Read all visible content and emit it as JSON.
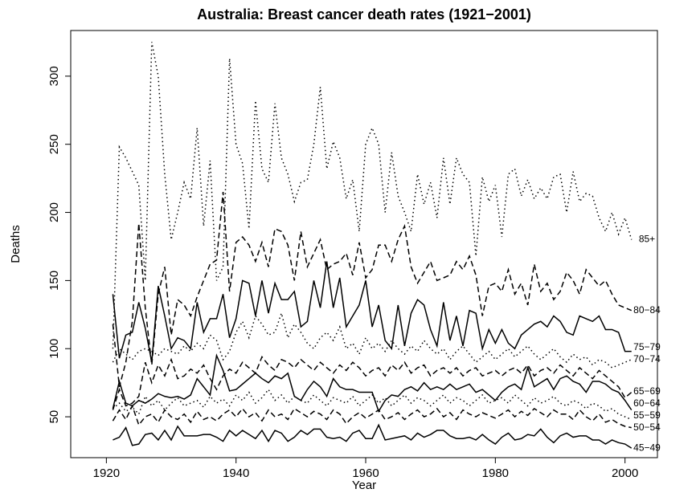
{
  "chart_data": {
    "type": "line",
    "title": "Australia: Breast cancer death rates (1921−2001)",
    "x_label": "Year",
    "y_label": "Deaths",
    "x": [
      1921,
      1922,
      1923,
      1924,
      1925,
      1926,
      1927,
      1928,
      1929,
      1930,
      1931,
      1932,
      1933,
      1934,
      1935,
      1936,
      1937,
      1938,
      1939,
      1940,
      1941,
      1942,
      1943,
      1944,
      1945,
      1946,
      1947,
      1948,
      1949,
      1950,
      1951,
      1952,
      1953,
      1954,
      1955,
      1956,
      1957,
      1958,
      1959,
      1960,
      1961,
      1962,
      1963,
      1964,
      1965,
      1966,
      1967,
      1968,
      1969,
      1970,
      1971,
      1972,
      1973,
      1974,
      1975,
      1976,
      1977,
      1978,
      1979,
      1980,
      1981,
      1982,
      1983,
      1984,
      1985,
      1986,
      1987,
      1988,
      1989,
      1990,
      1991,
      1992,
      1993,
      1994,
      1995,
      1996,
      1997,
      1998,
      1999,
      2000,
      2001
    ],
    "xlim": [
      1914.5,
      2005
    ],
    "xticks": [
      1920,
      1940,
      1960,
      1980,
      2000
    ],
    "ylim": [
      20,
      333.5
    ],
    "yticks": [
      50,
      100,
      150,
      200,
      250,
      300
    ],
    "series": [
      {
        "name": "45−49",
        "color": "#000000",
        "dash": "solid",
        "values": [
          33,
          35,
          42,
          29,
          30,
          37,
          38,
          33,
          40,
          33,
          43,
          36,
          36,
          36,
          37,
          37,
          35,
          32,
          40,
          36,
          40,
          37,
          34,
          40,
          32,
          40,
          38,
          32,
          35,
          40,
          37,
          41,
          41,
          35,
          34,
          35,
          32,
          38,
          40,
          34,
          34,
          44,
          33,
          34,
          35,
          36,
          33,
          38,
          35,
          37,
          40,
          40,
          36,
          34,
          34,
          35,
          33,
          37,
          33,
          30,
          35,
          38,
          33,
          34,
          37,
          36,
          41,
          35,
          31,
          36,
          38,
          35,
          36,
          36,
          33,
          33,
          30,
          33,
          31,
          30,
          27
        ]
      },
      {
        "name": "50−54",
        "color": "#000000",
        "dash": "dashed",
        "values": [
          47,
          55,
          48,
          58,
          44,
          50,
          52,
          46,
          55,
          50,
          48,
          52,
          46,
          54,
          48,
          50,
          47,
          52,
          55,
          50,
          56,
          50,
          53,
          47,
          55,
          50,
          52,
          48,
          56,
          53,
          50,
          54,
          52,
          48,
          55,
          52,
          45,
          50,
          53,
          49,
          52,
          55,
          48,
          50,
          53,
          48,
          52,
          55,
          50,
          52,
          56,
          50,
          53,
          48,
          55,
          52,
          50,
          53,
          51,
          49,
          52,
          55,
          50,
          54,
          51,
          56,
          53,
          50,
          55,
          52,
          52,
          48,
          55,
          50,
          47,
          52,
          46,
          48,
          45,
          43,
          42
        ]
      },
      {
        "name": "55−59",
        "color": "#000000",
        "dash": "dotted",
        "values": [
          56,
          60,
          54,
          57,
          52,
          65,
          58,
          62,
          55,
          60,
          64,
          58,
          60,
          62,
          57,
          65,
          60,
          63,
          58,
          66,
          62,
          68,
          60,
          64,
          70,
          62,
          66,
          60,
          65,
          62,
          60,
          66,
          62,
          58,
          64,
          62,
          60,
          65,
          58,
          62,
          66,
          60,
          64,
          58,
          62,
          66,
          60,
          64,
          62,
          58,
          62,
          66,
          60,
          64,
          62,
          58,
          62,
          66,
          60,
          62,
          64,
          60,
          66,
          62,
          58,
          64,
          60,
          62,
          65,
          60,
          58,
          62,
          60,
          56,
          60,
          58,
          54,
          56,
          52,
          50,
          48
        ]
      },
      {
        "name": "60−64",
        "color": "#000000",
        "dash": "solid",
        "values": [
          56,
          76,
          60,
          58,
          62,
          60,
          63,
          67,
          65,
          64,
          65,
          63,
          66,
          78,
          72,
          66,
          95,
          84,
          69,
          70,
          74,
          78,
          82,
          78,
          75,
          80,
          78,
          82,
          65,
          62,
          70,
          76,
          72,
          65,
          78,
          72,
          70,
          70,
          68,
          68,
          68,
          54,
          62,
          66,
          65,
          70,
          72,
          69,
          75,
          70,
          72,
          70,
          74,
          70,
          72,
          74,
          68,
          70,
          66,
          62,
          68,
          72,
          74,
          70,
          86,
          72,
          75,
          78,
          70,
          78,
          80,
          76,
          74,
          68,
          76,
          76,
          74,
          70,
          68,
          62,
          55
        ]
      },
      {
        "name": "65−69",
        "color": "#000000",
        "dash": "dashed",
        "values": [
          55,
          70,
          58,
          60,
          65,
          90,
          75,
          88,
          80,
          92,
          78,
          80,
          85,
          82,
          88,
          78,
          70,
          80,
          85,
          82,
          90,
          86,
          82,
          94,
          88,
          84,
          92,
          90,
          86,
          92,
          88,
          84,
          90,
          86,
          82,
          88,
          84,
          90,
          86,
          80,
          84,
          86,
          80,
          88,
          84,
          90,
          82,
          86,
          88,
          80,
          84,
          86,
          82,
          86,
          80,
          84,
          86,
          80,
          82,
          84,
          80,
          84,
          86,
          82,
          88,
          80,
          84,
          86,
          82,
          88,
          84,
          80,
          86,
          82,
          78,
          84,
          80,
          76,
          72,
          64,
          68
        ]
      },
      {
        "name": "70−74",
        "color": "#000000",
        "dash": "dotted",
        "values": [
          90,
          100,
          96,
          92,
          98,
          100,
          98,
          95,
          100,
          98,
          96,
          102,
          98,
          104,
          100,
          110,
          106,
          92,
          98,
          112,
          120,
          108,
          124,
          118,
          110,
          112,
          126,
          108,
          118,
          112,
          104,
          100,
          108,
          112,
          106,
          116,
          100,
          104,
          96,
          108,
          100,
          104,
          98,
          106,
          100,
          96,
          102,
          98,
          106,
          100,
          96,
          100,
          92,
          98,
          102,
          96,
          90,
          94,
          98,
          92,
          96,
          100,
          94,
          98,
          102,
          96,
          92,
          96,
          100,
          94,
          90,
          96,
          92,
          94,
          88,
          92,
          90,
          86,
          88,
          90,
          92
        ]
      },
      {
        "name": "75−79",
        "color": "#000000",
        "dash": "solid",
        "values": [
          140,
          93,
          110,
          112,
          134,
          115,
          90,
          146,
          124,
          100,
          108,
          106,
          100,
          134,
          112,
          122,
          122,
          140,
          108,
          122,
          150,
          148,
          124,
          150,
          126,
          148,
          136,
          136,
          142,
          116,
          120,
          150,
          130,
          164,
          130,
          152,
          116,
          124,
          132,
          150,
          116,
          132,
          106,
          100,
          132,
          102,
          126,
          136,
          132,
          114,
          102,
          134,
          106,
          124,
          102,
          128,
          126,
          100,
          114,
          104,
          114,
          104,
          100,
          110,
          114,
          118,
          120,
          116,
          124,
          120,
          112,
          110,
          124,
          122,
          120,
          124,
          114,
          114,
          112,
          98,
          98
        ]
      },
      {
        "name": "80−84",
        "color": "#000000",
        "dash": "dashed",
        "values": [
          118,
          72,
          90,
          120,
          192,
          130,
          88,
          140,
          160,
          110,
          136,
          132,
          124,
          138,
          150,
          162,
          165,
          215,
          142,
          178,
          182,
          176,
          164,
          178,
          160,
          188,
          186,
          176,
          150,
          186,
          160,
          170,
          180,
          158,
          162,
          164,
          170,
          154,
          178,
          152,
          158,
          176,
          176,
          164,
          180,
          190,
          160,
          148,
          156,
          164,
          150,
          152,
          154,
          164,
          158,
          168,
          154,
          124,
          146,
          148,
          142,
          158,
          140,
          148,
          132,
          162,
          142,
          148,
          136,
          142,
          156,
          150,
          140,
          158,
          152,
          146,
          150,
          140,
          132,
          130,
          128
        ]
      },
      {
        "name": "85+",
        "color": "#000000",
        "dash": "dotted",
        "values": [
          100,
          248,
          240,
          230,
          220,
          150,
          325,
          300,
          228,
          180,
          200,
          222,
          210,
          262,
          190,
          238,
          150,
          160,
          313,
          250,
          236,
          188,
          282,
          232,
          222,
          280,
          240,
          228,
          208,
          222,
          224,
          250,
          292,
          232,
          252,
          240,
          210,
          224,
          186,
          250,
          262,
          250,
          200,
          244,
          212,
          200,
          186,
          228,
          206,
          222,
          196,
          240,
          206,
          240,
          228,
          222,
          168,
          226,
          208,
          220,
          182,
          228,
          232,
          212,
          224,
          210,
          218,
          210,
          226,
          228,
          200,
          230,
          208,
          214,
          212,
          196,
          186,
          200,
          184,
          196,
          180
        ]
      }
    ]
  }
}
